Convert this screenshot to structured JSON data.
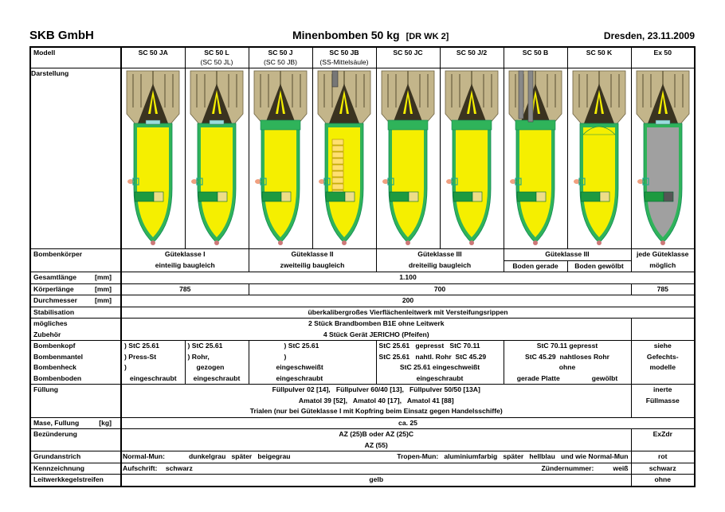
{
  "header": {
    "company": "SKB GmbH",
    "title": "Minenbomben 50 kg",
    "code": "[DR  WK 2]",
    "date": "Dresden, 23.11.2009"
  },
  "labels": {
    "modell": "Modell",
    "darstellung": "Darstellung",
    "bombenkoerper": "Bombenkörper",
    "gesamtlaenge": "Gesamtlänge",
    "koerperlaenge": "Körperlänge",
    "durchmesser": "Durchmesser",
    "mm": "[mm]",
    "stabilisation": "Stabilisation",
    "moegliches": "mögliches",
    "zubehoer": "Zubehör",
    "bombenkopf": "Bombenkopf",
    "bombenmantel": "Bombenmantel",
    "bombenheck": "Bombenheck",
    "bombenboden": "Bombenboden",
    "fuellung": "Füllung",
    "masse": "Mase, Fullung",
    "kg": "[kg]",
    "bezuenderung": "Bezünderung",
    "grundanstrich": "Grundanstrich",
    "kennzeichnung": "Kennzeichnung",
    "leitwerk": "Leitwerkkegelstreifen"
  },
  "models": [
    {
      "name": "SC 50 JA",
      "sub": "",
      "fill": "#f5ef00",
      "variant": "plain"
    },
    {
      "name": "SC 50 L",
      "sub": "(SC 50 JL)",
      "fill": "#f5ef00",
      "variant": "plain"
    },
    {
      "name": "SC 50 J",
      "sub": "(SC 50 JB)",
      "fill": "#f5ef00",
      "variant": "ring"
    },
    {
      "name": "SC 50 JB",
      "sub": "(SS-Mittelsäule)",
      "fill": "#f5ef00",
      "variant": "column"
    },
    {
      "name": "SC 50 JC",
      "sub": "",
      "fill": "#f5ef00",
      "variant": "ring"
    },
    {
      "name": "SC 50 J/2",
      "sub": "",
      "fill": "#f5ef00",
      "variant": "ring"
    },
    {
      "name": "SC 50 B",
      "sub": "",
      "fill": "#f5ef00",
      "variant": "tubes"
    },
    {
      "name": "SC 50 K",
      "sub": "",
      "fill": "#f5ef00",
      "variant": "dome"
    },
    {
      "name": "Ex 50",
      "sub": "",
      "fill": "#a0a0a0",
      "variant": "plain"
    }
  ],
  "colors": {
    "fins": "#c3b58a",
    "shell": "#2fb35a",
    "yellow_fill": "#f5ef00",
    "inert_fill": "#a0a0a0"
  },
  "koerper": {
    "g1": "Güteklasse I",
    "g1b": "einteilig baugleich",
    "g2": "Güteklasse II",
    "g2b": "zweiteilig baugleich",
    "g3": "Güteklasse III",
    "g3b": "dreiteilig baugleich",
    "g3k": "Güteklasse III",
    "gerade": "Boden gerade",
    "gewoelbt": "Boden gewölbt",
    "ex1": "jede Güteklasse",
    "ex2": "möglich"
  },
  "gesamtlaenge": "1.100",
  "koerperlaenge": {
    "a": "785",
    "b": "700",
    "ex": "785"
  },
  "durchmesser": "200",
  "stabilisation": "überkalibergroßes Vierflächenleitwerk mit Versteifungsrippen",
  "zubehoer": [
    "2 Stück Brandbomben B1E ohne Leitwerk",
    "4 Stück Gerät JERICHO (Pfeifen)"
  ],
  "aufbau": {
    "ja": [
      ") StC 25.61",
      ") Press-St",
      ")",
      "eingeschraubt"
    ],
    "l": [
      ") StC 25.61",
      ") Rohr,",
      "gezogen",
      "eingeschraubt"
    ],
    "j": [
      ") StC 25.61",
      ")",
      "eingeschweißt",
      "eingeschraubt"
    ],
    "jc": [
      "StC 25.61   gepresst   StC 70.11",
      "StC 25.61   nahtl. Rohr  StC 45.29",
      "StC 25.61 eingeschweißt",
      "eingeschraubt"
    ],
    "b": [
      "StC 70.11 gepresst",
      "StC 45.29  nahtloses Rohr",
      "ohne",
      "gerade Platte",
      "gewölbt"
    ],
    "ex": [
      "siehe",
      "Gefechts-",
      "modelle"
    ]
  },
  "fuellung": [
    "Füllpulver 02 [14],   Füllpulver 60/40 [13],   Füllpulver 50/50 [13A]",
    "Amatol 39 [52],   Amatol 40 [17],   Amatol 41 [88]",
    "Trialen (nur bei Güteklasse I mit Kopfring beim Einsatz gegen Handelsschiffe)"
  ],
  "fuellung_ex": [
    "inerte",
    "Füllmasse"
  ],
  "masse": "ca. 25",
  "bezuenderung": [
    "AZ (25)B oder AZ (25)C",
    "AZ (55)"
  ],
  "bezuenderung_ex": "ExZdr",
  "grundanstrich": {
    "normal_label": "Normal-Mun:",
    "normal": "dunkelgrau   später   beigegrau",
    "tropen_label": "Tropen-Mun:",
    "tropen": "aluminiumfarbig   später   hellblau   und wie Normal-Mun",
    "ex": "rot"
  },
  "kennzeichnung": {
    "aufschrift_label": "Aufschrift:",
    "aufschrift": "schwarz",
    "zuender_label": "Zündernummer:",
    "zuender": "weiß",
    "ex": "schwarz"
  },
  "leitwerk": {
    "value": "gelb",
    "ex": "ohne"
  }
}
